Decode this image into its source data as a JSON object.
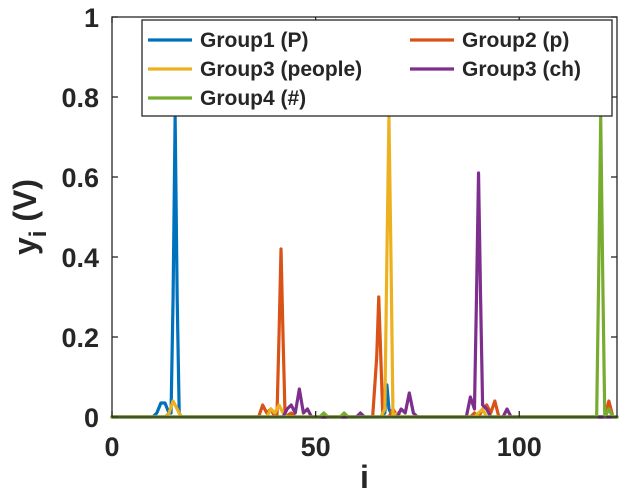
{
  "chart_data": {
    "type": "line",
    "title": "",
    "xlabel": "i",
    "ylabel_main": "y",
    "ylabel_sub": "i",
    "ylabel_suffix": " (V)",
    "xlim": [
      0,
      124
    ],
    "ylim": [
      0,
      1
    ],
    "grid": false,
    "legend_position": "top-right",
    "x_ticks": [
      0,
      50,
      100
    ],
    "x_tick_labels": [
      "0",
      "50",
      "100"
    ],
    "y_ticks": [
      0,
      0.2,
      0.4,
      0.6,
      0.8,
      1
    ],
    "y_tick_labels": [
      "0",
      "0.2",
      "0.4",
      "0.6",
      "0.8",
      "1"
    ],
    "series": [
      {
        "name": "Group1 (P)",
        "color": "#0072bd",
        "points": [
          [
            0,
            0
          ],
          [
            10,
            0
          ],
          [
            11,
            0.01
          ],
          [
            12,
            0.035
          ],
          [
            13,
            0.035
          ],
          [
            14,
            0.01
          ],
          [
            14.5,
            0.01
          ],
          [
            15,
            0.3
          ],
          [
            15.5,
            0.75
          ],
          [
            16,
            0.3
          ],
          [
            16.5,
            0.01
          ],
          [
            17,
            0
          ],
          [
            65,
            0
          ],
          [
            66,
            0
          ],
          [
            67,
            0.01
          ],
          [
            67.5,
            0.08
          ],
          [
            68,
            0.02
          ],
          [
            69,
            0
          ],
          [
            124,
            0
          ]
        ]
      },
      {
        "name": "Group2 (p)",
        "color": "#d95319",
        "points": [
          [
            0,
            0
          ],
          [
            36,
            0
          ],
          [
            37,
            0.03
          ],
          [
            38,
            0.01
          ],
          [
            39,
            0.02
          ],
          [
            40,
            0
          ],
          [
            40.5,
            0
          ],
          [
            41,
            0.2
          ],
          [
            41.5,
            0.42
          ],
          [
            42,
            0.2
          ],
          [
            42.5,
            0
          ],
          [
            44,
            0.01
          ],
          [
            45,
            0
          ],
          [
            64,
            0
          ],
          [
            65,
            0.15
          ],
          [
            65.5,
            0.3
          ],
          [
            66,
            0.15
          ],
          [
            66.5,
            0
          ],
          [
            68,
            0
          ],
          [
            69,
            0.02
          ],
          [
            70,
            0
          ],
          [
            88,
            0
          ],
          [
            89,
            0.01
          ],
          [
            90,
            0
          ],
          [
            91,
            0.02
          ],
          [
            92,
            0.03
          ],
          [
            93,
            0.01
          ],
          [
            94,
            0.04
          ],
          [
            95,
            0
          ],
          [
            121,
            0
          ],
          [
            122,
            0.04
          ],
          [
            123,
            0
          ],
          [
            124,
            0
          ]
        ]
      },
      {
        "name": "Group3 (people)",
        "color": "#edb120",
        "points": [
          [
            0,
            0
          ],
          [
            13,
            0
          ],
          [
            14,
            0.01
          ],
          [
            15,
            0.04
          ],
          [
            16,
            0.02
          ],
          [
            17,
            0
          ],
          [
            38,
            0
          ],
          [
            39,
            0.02
          ],
          [
            40,
            0.01
          ],
          [
            41,
            0.03
          ],
          [
            42,
            0.01
          ],
          [
            43,
            0
          ],
          [
            66,
            0
          ],
          [
            67,
            0.02
          ],
          [
            67.5,
            0.4
          ],
          [
            68,
            0.75
          ],
          [
            68.5,
            0.4
          ],
          [
            69,
            0
          ],
          [
            70,
            0.01
          ],
          [
            71,
            0
          ],
          [
            89,
            0
          ],
          [
            90,
            0.01
          ],
          [
            91,
            0.02
          ],
          [
            92,
            0
          ],
          [
            121,
            0
          ],
          [
            122,
            0.02
          ],
          [
            123,
            0
          ],
          [
            124,
            0
          ]
        ]
      },
      {
        "name": "Group3 (ch)",
        "color": "#7e2f8e",
        "points": [
          [
            0,
            0
          ],
          [
            42,
            0
          ],
          [
            43,
            0.02
          ],
          [
            44,
            0.03
          ],
          [
            45,
            0.01
          ],
          [
            46,
            0.07
          ],
          [
            47,
            0.01
          ],
          [
            48,
            0.02
          ],
          [
            49,
            0
          ],
          [
            60,
            0
          ],
          [
            61,
            0.01
          ],
          [
            62,
            0
          ],
          [
            70,
            0
          ],
          [
            71,
            0.02
          ],
          [
            72,
            0.01
          ],
          [
            73,
            0.06
          ],
          [
            74,
            0.01
          ],
          [
            75,
            0
          ],
          [
            87,
            0
          ],
          [
            88,
            0.05
          ],
          [
            89,
            0.02
          ],
          [
            89.5,
            0.3
          ],
          [
            90,
            0.61
          ],
          [
            90.5,
            0.3
          ],
          [
            91,
            0.03
          ],
          [
            92,
            0.02
          ],
          [
            93,
            0
          ],
          [
            96,
            0
          ],
          [
            97,
            0.02
          ],
          [
            98,
            0
          ],
          [
            124,
            0
          ]
        ]
      },
      {
        "name": "Group4 (#)",
        "color": "#77ac30",
        "points": [
          [
            0,
            0
          ],
          [
            51,
            0
          ],
          [
            52,
            0.01
          ],
          [
            53,
            0
          ],
          [
            56,
            0
          ],
          [
            57,
            0.01
          ],
          [
            58,
            0
          ],
          [
            119,
            0
          ],
          [
            119.5,
            0.35
          ],
          [
            120,
            0.75
          ],
          [
            120.5,
            0.35
          ],
          [
            121,
            0
          ],
          [
            122,
            0.02
          ],
          [
            123,
            0
          ],
          [
            124,
            0
          ]
        ]
      }
    ]
  },
  "colors": {
    "axis": "#262626",
    "background": "#ffffff"
  }
}
